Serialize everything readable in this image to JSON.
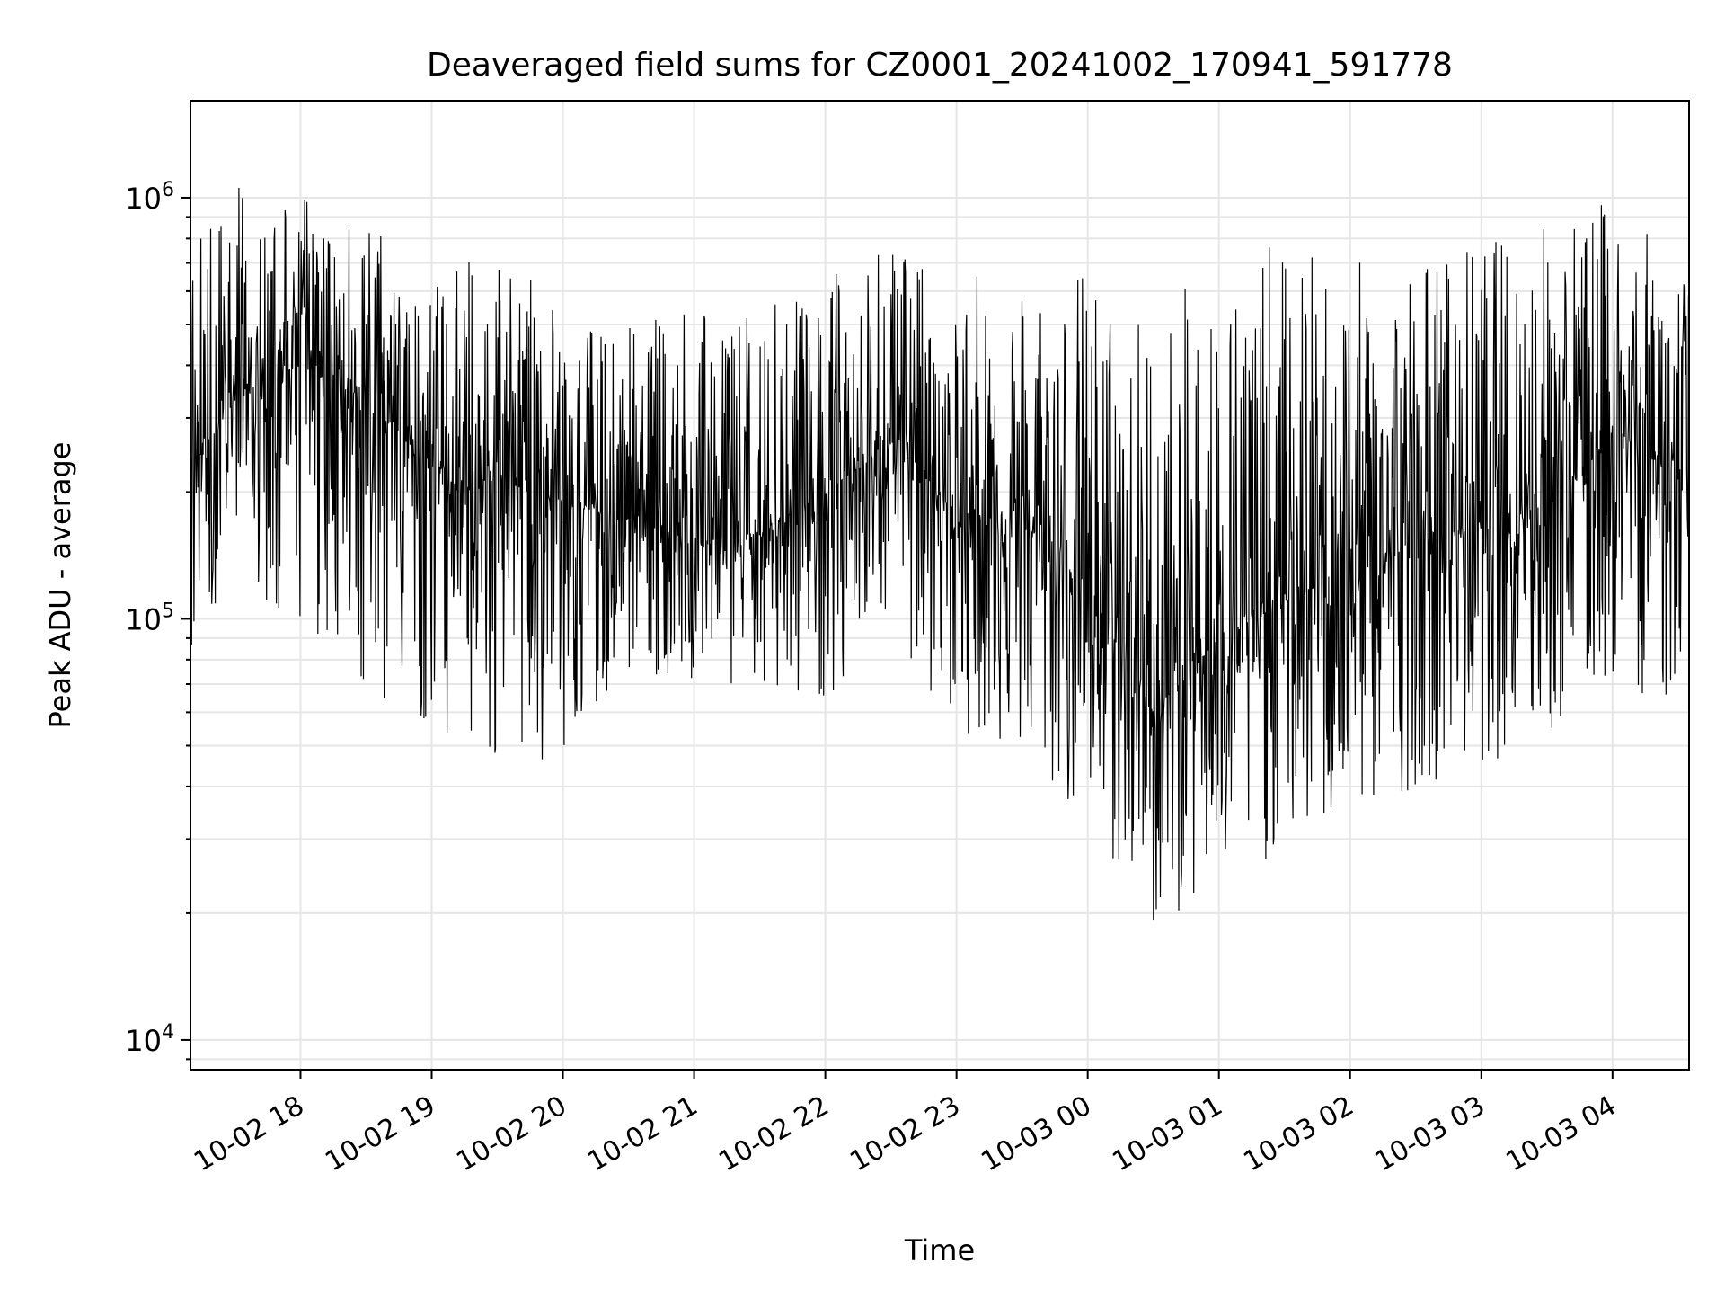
{
  "chart_data": {
    "type": "line",
    "title": "Deaveraged field sums for CZ0001_20241002_170941_591778",
    "xlabel": "Time",
    "ylabel": "Peak ADU - average",
    "yscale": "log",
    "ylim": [
      8500,
      1700000
    ],
    "xlim": [
      "2024-10-02 17:09:41",
      "2024-10-03 04:35:00"
    ],
    "grid": true,
    "legend": "none",
    "line_color": "#000000",
    "grid_color": "#e6e6e6",
    "x_ticks": [
      {
        "value": "2024-10-02 18:00",
        "label": "10-02 18"
      },
      {
        "value": "2024-10-02 19:00",
        "label": "10-02 19"
      },
      {
        "value": "2024-10-02 20:00",
        "label": "10-02 20"
      },
      {
        "value": "2024-10-02 21:00",
        "label": "10-02 21"
      },
      {
        "value": "2024-10-02 22:00",
        "label": "10-02 22"
      },
      {
        "value": "2024-10-02 23:00",
        "label": "10-02 23"
      },
      {
        "value": "2024-10-03 00:00",
        "label": "10-03 00"
      },
      {
        "value": "2024-10-03 01:00",
        "label": "10-03 01"
      },
      {
        "value": "2024-10-03 02:00",
        "label": "10-03 02"
      },
      {
        "value": "2024-10-03 03:00",
        "label": "10-03 03"
      },
      {
        "value": "2024-10-03 04:00",
        "label": "10-03 04"
      }
    ],
    "y_ticks": [
      {
        "value": 10000,
        "base": "10",
        "exp": "4"
      },
      {
        "value": 100000,
        "base": "10",
        "exp": "5"
      },
      {
        "value": 1000000,
        "base": "10",
        "exp": "6"
      }
    ],
    "series": [
      {
        "x": [
          "2024-10-02 17:10",
          "2024-10-02 17:30",
          "2024-10-02 18:00",
          "2024-10-02 18:30",
          "2024-10-02 19:00",
          "2024-10-02 19:30",
          "2024-10-02 20:00",
          "2024-10-02 20:30",
          "2024-10-02 21:00",
          "2024-10-02 21:30",
          "2024-10-02 22:00",
          "2024-10-02 22:30",
          "2024-10-02 23:00",
          "2024-10-02 23:30",
          "2024-10-03 00:00",
          "2024-10-03 00:30",
          "2024-10-03 01:00",
          "2024-10-03 01:30",
          "2024-10-03 02:00",
          "2024-10-03 02:30",
          "2024-10-03 03:00",
          "2024-10-03 03:30",
          "2024-10-03 04:00",
          "2024-10-03 04:30"
        ],
        "y": [
          230000,
          330000,
          400000,
          330000,
          230000,
          210000,
          190000,
          180000,
          150000,
          160000,
          200000,
          260000,
          180000,
          170000,
          120000,
          60000,
          90000,
          110000,
          130000,
          150000,
          170000,
          190000,
          280000,
          220000
        ],
        "y_low": [
          80000,
          120000,
          100000,
          70000,
          50000,
          45000,
          45000,
          75000,
          70000,
          70000,
          65000,
          80000,
          55000,
          45000,
          30000,
          18000,
          22000,
          28000,
          32000,
          40000,
          45000,
          50000,
          70000,
          60000
        ],
        "y_high": [
          750000,
          1100000,
          1000000,
          850000,
          700000,
          750000,
          650000,
          500000,
          550000,
          550000,
          650000,
          850000,
          650000,
          700000,
          700000,
          550000,
          700000,
          800000,
          700000,
          750000,
          800000,
          900000,
          1000000,
          700000
        ]
      }
    ]
  }
}
